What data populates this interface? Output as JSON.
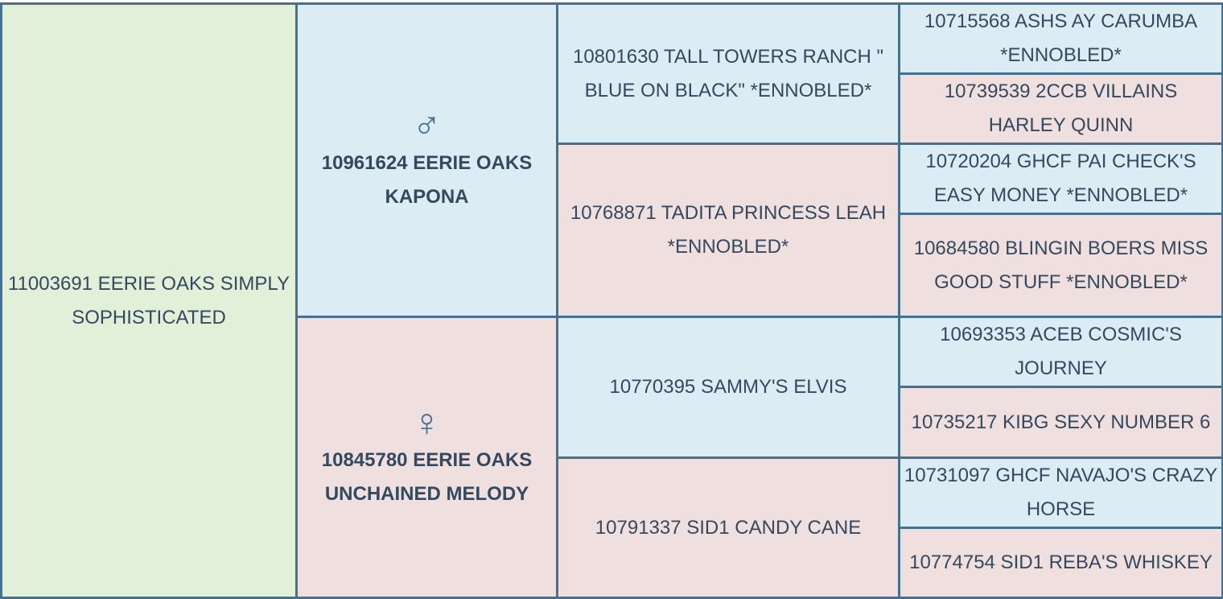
{
  "subject": "11003691 EERIE OAKS SIMPLY SOPHISTICATED",
  "sire": {
    "symbol": "♂",
    "icon": "male-symbol-icon",
    "name": "10961624 EERIE OAKS KAPONA"
  },
  "dam": {
    "symbol": "♀",
    "icon": "female-symbol-icon",
    "name": "10845780 EERIE OAKS UNCHAINED MELODY"
  },
  "grandparents": [
    "10801630 TALL TOWERS RANCH \" BLUE ON BLACK\" *ENNOBLED*",
    "10768871 TADITA PRINCESS LEAH *ENNOBLED*",
    "10770395 SAMMY'S ELVIS",
    "10791337 SID1 CANDY CANE"
  ],
  "great_grandparents": [
    "10715568 ASHS AY CARUMBA *ENNOBLED*",
    "10739539 2CCB VILLAINS HARLEY QUINN",
    "10720204 GHCF PAI CHECK'S EASY MONEY *ENNOBLED*",
    "10684580 BLINGIN BOERS MISS GOOD STUFF *ENNOBLED*",
    "10693353 ACEB COSMIC'S JOURNEY",
    "10735217 KIBG SEXY NUMBER 6",
    "10731097 GHCF NAVAJO'S CRAZY HORSE",
    "10774754 SID1 REBA'S WHISKEY"
  ],
  "colors": {
    "male": "#dcecf5",
    "female": "#f0dfdf",
    "subject": "#e2efd9",
    "border": "#46708f",
    "text": "#34495e"
  }
}
